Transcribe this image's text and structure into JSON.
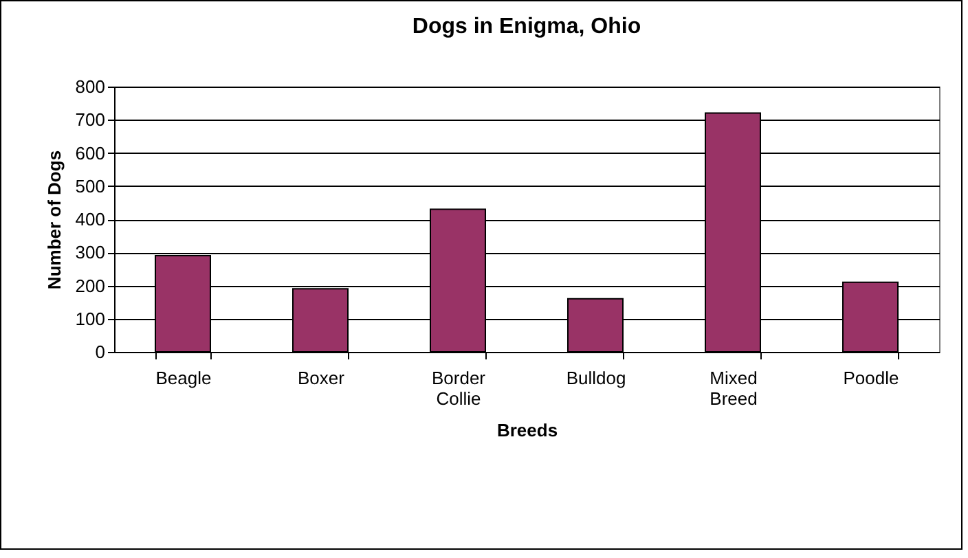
{
  "chart_data": {
    "type": "bar",
    "title": "Dogs in Enigma, Ohio",
    "xlabel": "Breeds",
    "ylabel": "Number of Dogs",
    "categories": [
      "Beagle",
      "Boxer",
      "Border Collie",
      "Bulldog",
      "Mixed Breed",
      "Poodle"
    ],
    "values": [
      290,
      190,
      430,
      160,
      720,
      210
    ],
    "color": "#993366",
    "ylim": [
      0,
      800
    ],
    "yticks": [
      0,
      100,
      200,
      300,
      400,
      500,
      600,
      700,
      800
    ],
    "grid": "y"
  }
}
